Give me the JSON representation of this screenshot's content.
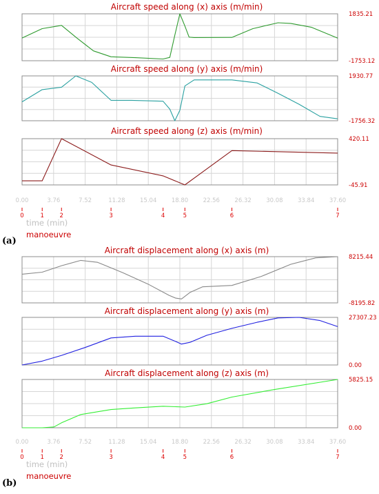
{
  "figure": {
    "panel_labels": [
      "(a)",
      "(b)"
    ],
    "time_axis_label": "time  (min)",
    "manoeuvre_label": "manoeuvre",
    "time_ticks": [
      "0.00",
      "3.76",
      "7.52",
      "11.28",
      "15.04",
      "18.80",
      "22.56",
      "26.32",
      "30.08",
      "33.84",
      "37.60"
    ],
    "manoeuvre_markers": [
      {
        "label": "0",
        "t": 0.0
      },
      {
        "label": "1",
        "t": 2.4
      },
      {
        "label": "2",
        "t": 4.7
      },
      {
        "label": "3",
        "t": 10.6
      },
      {
        "label": "4",
        "t": 16.8
      },
      {
        "label": "5",
        "t": 19.4
      },
      {
        "label": "6",
        "t": 25.0
      },
      {
        "label": "7",
        "t": 37.6
      }
    ]
  },
  "chart_data": [
    {
      "type": "line",
      "title": "Aircraft speed along (x) axis  (m/min)",
      "ylim": [
        -1753.12,
        1835.21
      ],
      "ymax_label": "1835.21",
      "ymin_label": "-1753.12",
      "color": "#2e9a2e",
      "x": [
        0,
        2.4,
        4.7,
        6.5,
        8.5,
        10.6,
        13.5,
        16.8,
        17.6,
        18.2,
        18.8,
        19.4,
        19.9,
        20.5,
        25.0,
        27.5,
        30.5,
        32.0,
        34.5,
        37.6
      ],
      "values": [
        -15,
        700,
        950,
        0,
        -1000,
        -1450,
        -1520,
        -1620,
        -1500,
        200,
        1835.21,
        900,
        50,
        20,
        30,
        700,
        1150,
        1100,
        800,
        -20
      ]
    },
    {
      "type": "line",
      "title": "Aircraft speed along (y) axis  (m/min)",
      "ylim": [
        -1756.32,
        1930.77
      ],
      "ymax_label": "1930.77",
      "ymin_label": "-1756.32",
      "color": "#28a0a0",
      "x": [
        0,
        2.4,
        4.7,
        6.4,
        8.3,
        10.6,
        13.0,
        16.8,
        17.6,
        18.2,
        18.8,
        19.4,
        20.5,
        25.0,
        28.0,
        30.5,
        33.0,
        35.5,
        37.6
      ],
      "values": [
        -200,
        800,
        1000,
        1930.77,
        1400,
        -80,
        -80,
        -150,
        -800,
        -1756.32,
        -900,
        1100,
        1600,
        1600,
        1350,
        500,
        -400,
        -1400,
        -1600
      ]
    },
    {
      "type": "line",
      "title": "Aircraft speed along (z) axis  (m/min)",
      "ylim": [
        -45.91,
        420.11
      ],
      "ymax_label": "420.11",
      "ymin_label": "-45.91",
      "color": "#8b1a1a",
      "x": [
        0,
        2.4,
        4.7,
        10.6,
        16.8,
        19.4,
        25.0,
        37.6
      ],
      "values": [
        -5,
        -5,
        420.11,
        155,
        45,
        -45.91,
        300,
        275
      ]
    },
    {
      "type": "line",
      "title": "Aircraft displacement along (x) axis (m)",
      "ylim": [
        -8195.82,
        8215.44
      ],
      "ymax_label": "8215.44",
      "ymin_label": "-8195.82",
      "color": "#888888",
      "x": [
        0,
        2.4,
        4.7,
        7.0,
        9.0,
        12.0,
        15.0,
        17.5,
        18.3,
        19.0,
        20.0,
        21.5,
        25.0,
        28.5,
        32.0,
        35.0,
        37.6
      ],
      "values": [
        2000,
        2700,
        5000,
        6900,
        6200,
        2500,
        -1500,
        -5500,
        -6500,
        -6800,
        -4500,
        -2500,
        -2000,
        1200,
        5500,
        7800,
        8215.44
      ]
    },
    {
      "type": "line",
      "title": "Aircraft displacement along (y) axis (m)",
      "ylim": [
        0,
        27307.23
      ],
      "ymax_label": "27307.23",
      "ymin_label": "0.00",
      "color": "#1f1fe0",
      "x": [
        0,
        2.4,
        4.7,
        7.5,
        10.6,
        13.5,
        16.8,
        18.3,
        19.0,
        20.0,
        22.0,
        25.0,
        28.0,
        30.5,
        33.0,
        35.5,
        37.6
      ],
      "values": [
        0,
        2200,
        5500,
        10000,
        15500,
        16500,
        16500,
        13500,
        12000,
        13000,
        17000,
        21000,
        24500,
        27000,
        27307.23,
        25500,
        22000
      ]
    },
    {
      "type": "line",
      "title": "Aircraft displacement along (z) axis (m)",
      "ylim": [
        0,
        5825.15
      ],
      "ymax_label": "5825.15",
      "ymin_label": "0.00",
      "color": "#33ee33",
      "x": [
        0,
        2.4,
        3.8,
        4.7,
        7.0,
        10.6,
        13.5,
        16.8,
        19.4,
        22.0,
        25.0,
        30.0,
        37.6
      ],
      "values": [
        0,
        0,
        100,
        600,
        1600,
        2200,
        2400,
        2600,
        2500,
        2900,
        3700,
        4600,
        5825.15
      ]
    }
  ]
}
